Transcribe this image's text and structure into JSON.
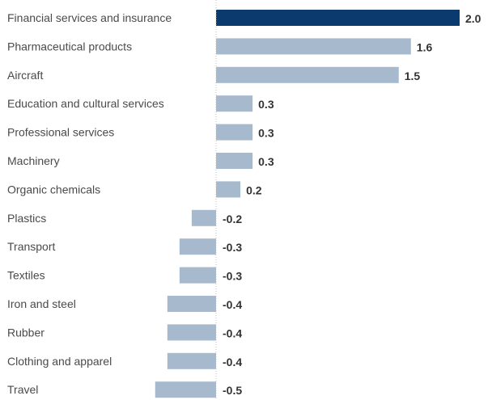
{
  "chart_data": {
    "type": "bar",
    "orientation": "horizontal",
    "title": "",
    "xlabel": "",
    "ylabel": "",
    "grid": false,
    "xlim": [
      -0.5,
      2.0
    ],
    "categories": [
      "Financial services and insurance",
      "Pharmaceutical products",
      "Aircraft",
      "Education and cultural services",
      "Professional services",
      "Machinery",
      "Organic chemicals",
      "Plastics",
      "Transport",
      "Textiles",
      "Iron and steel",
      "Rubber",
      "Clothing and apparel",
      "Travel"
    ],
    "values": [
      2.0,
      1.6,
      1.5,
      0.3,
      0.3,
      0.3,
      0.2,
      -0.2,
      -0.3,
      -0.3,
      -0.4,
      -0.4,
      -0.4,
      -0.5
    ],
    "value_labels": [
      "2.0",
      "1.6",
      "1.5",
      "0.3",
      "0.3",
      "0.3",
      "0.2",
      "-0.2",
      "-0.3",
      "-0.3",
      "-0.4",
      "-0.4",
      "-0.4",
      "-0.5"
    ],
    "colors": {
      "highlight": "#0b3a6e",
      "bar": "#a7b9cd",
      "zero_line": "#bfbfbf",
      "category_text": "#4a4a4a",
      "value_text": "#333333"
    }
  }
}
